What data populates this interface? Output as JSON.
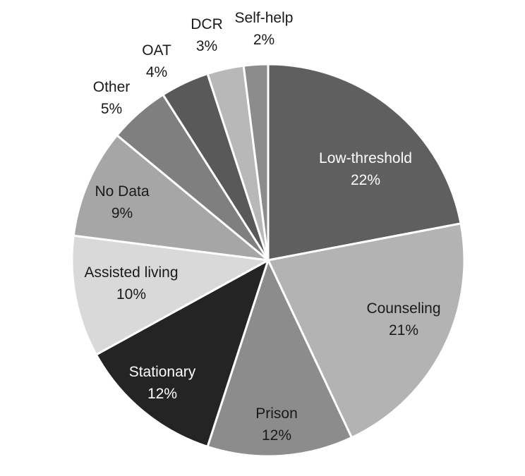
{
  "chart_data": {
    "type": "pie",
    "title": "",
    "slices": [
      {
        "label": "Low-threshold",
        "percent_label": "22%",
        "value": 22,
        "color": "#5f5f5f",
        "text_color": "#ffffff"
      },
      {
        "label": "Counseling",
        "percent_label": "21%",
        "value": 21,
        "color": "#b3b3b3",
        "text_color": "#1a1a1a"
      },
      {
        "label": "Prison",
        "percent_label": "12%",
        "value": 12,
        "color": "#8c8c8c",
        "text_color": "#1a1a1a"
      },
      {
        "label": "Stationary",
        "percent_label": "12%",
        "value": 12,
        "color": "#242424",
        "text_color": "#ffffff"
      },
      {
        "label": "Assisted living",
        "percent_label": "10%",
        "value": 10,
        "color": "#d9d9d9",
        "text_color": "#1a1a1a"
      },
      {
        "label": "No Data",
        "percent_label": "9%",
        "value": 9,
        "color": "#a6a6a6",
        "text_color": "#1a1a1a"
      },
      {
        "label": "Other",
        "percent_label": "5%",
        "value": 5,
        "color": "#7f7f7f",
        "text_color": "#1a1a1a"
      },
      {
        "label": "OAT",
        "percent_label": "4%",
        "value": 4,
        "color": "#595959",
        "text_color": "#1a1a1a"
      },
      {
        "label": "DCR",
        "percent_label": "3%",
        "value": 3,
        "color": "#b8b8b8",
        "text_color": "#1a1a1a"
      },
      {
        "label": "Self-help",
        "percent_label": "2%",
        "value": 2,
        "color": "#8c8c8c",
        "text_color": "#1a1a1a"
      }
    ],
    "start_angle": "12 o'clock",
    "direction": "clockwise",
    "slice_border_color": "#ffffff",
    "legend": "none"
  }
}
